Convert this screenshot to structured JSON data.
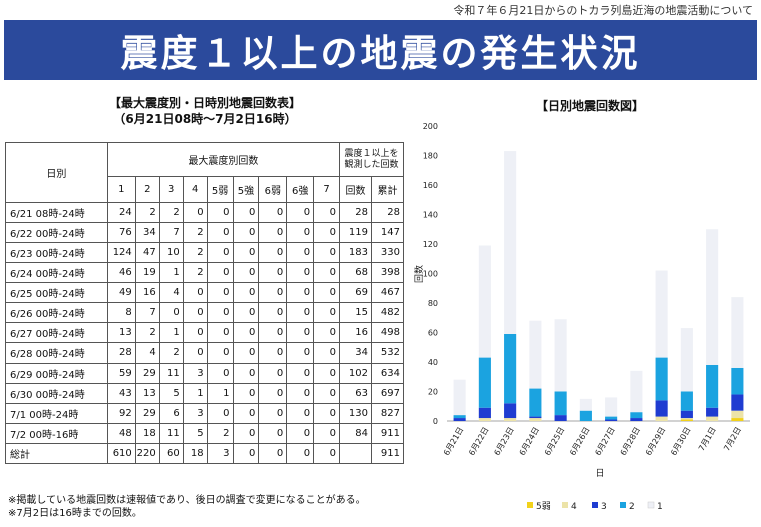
{
  "header_note": "令和７年６月21日からのトカラ列島近海の地震活動について",
  "title": "震度１以上の地震の発生状況",
  "table": {
    "title_line1": "【最大震度別・日時別地震回数表】",
    "title_line2": "（6月21日08時～7月2日16時）",
    "col_date": "日別",
    "col_group": "最大震度別回数",
    "col_cum_group": "震度１以上を観測した回数",
    "intensities": [
      "1",
      "2",
      "3",
      "4",
      "5弱",
      "5強",
      "6弱",
      "6強",
      "7"
    ],
    "col_count": "回数",
    "col_cum": "累計",
    "rows": [
      {
        "date": "6/21 08時-24時",
        "counts": [
          "24",
          "2",
          "2",
          "0",
          "0",
          "0",
          "0",
          "0",
          "0"
        ],
        "total": "28",
        "cum": "28"
      },
      {
        "date": "6/22 00時-24時",
        "counts": [
          "76",
          "34",
          "7",
          "2",
          "0",
          "0",
          "0",
          "0",
          "0"
        ],
        "total": "119",
        "cum": "147"
      },
      {
        "date": "6/23 00時-24時",
        "counts": [
          "124",
          "47",
          "10",
          "2",
          "0",
          "0",
          "0",
          "0",
          "0"
        ],
        "total": "183",
        "cum": "330"
      },
      {
        "date": "6/24 00時-24時",
        "counts": [
          "46",
          "19",
          "1",
          "2",
          "0",
          "0",
          "0",
          "0",
          "0"
        ],
        "total": "68",
        "cum": "398"
      },
      {
        "date": "6/25 00時-24時",
        "counts": [
          "49",
          "16",
          "4",
          "0",
          "0",
          "0",
          "0",
          "0",
          "0"
        ],
        "total": "69",
        "cum": "467"
      },
      {
        "date": "6/26 00時-24時",
        "counts": [
          "8",
          "7",
          "0",
          "0",
          "0",
          "0",
          "0",
          "0",
          "0"
        ],
        "total": "15",
        "cum": "482"
      },
      {
        "date": "6/27 00時-24時",
        "counts": [
          "13",
          "2",
          "1",
          "0",
          "0",
          "0",
          "0",
          "0",
          "0"
        ],
        "total": "16",
        "cum": "498"
      },
      {
        "date": "6/28 00時-24時",
        "counts": [
          "28",
          "4",
          "2",
          "0",
          "0",
          "0",
          "0",
          "0",
          "0"
        ],
        "total": "34",
        "cum": "532"
      },
      {
        "date": "6/29 00時-24時",
        "counts": [
          "59",
          "29",
          "11",
          "3",
          "0",
          "0",
          "0",
          "0",
          "0"
        ],
        "total": "102",
        "cum": "634"
      },
      {
        "date": "6/30 00時-24時",
        "counts": [
          "43",
          "13",
          "5",
          "1",
          "1",
          "0",
          "0",
          "0",
          "0"
        ],
        "total": "63",
        "cum": "697"
      },
      {
        "date": "7/1 00時-24時",
        "counts": [
          "92",
          "29",
          "6",
          "3",
          "0",
          "0",
          "0",
          "0",
          "0"
        ],
        "total": "130",
        "cum": "827"
      },
      {
        "date": "7/2 00時-16時",
        "counts": [
          "48",
          "18",
          "11",
          "5",
          "2",
          "0",
          "0",
          "0",
          "0"
        ],
        "total": "84",
        "cum": "911"
      }
    ],
    "totals": {
      "label": "総計",
      "counts": [
        "610",
        "220",
        "60",
        "18",
        "3",
        "0",
        "0",
        "0",
        "0"
      ],
      "total": "",
      "cum": "911"
    }
  },
  "chart_data": {
    "type": "bar",
    "stacked": true,
    "title": "【日別地震回数図】",
    "xlabel": "日",
    "ylabel": "回数",
    "ylim": [
      0,
      200
    ],
    "yticks": [
      0,
      20,
      40,
      60,
      80,
      100,
      120,
      140,
      160,
      180,
      200
    ],
    "categories": [
      "6月21日",
      "6月22日",
      "6月23日",
      "6月24日",
      "6月25日",
      "6月26日",
      "6月27日",
      "6月28日",
      "6月29日",
      "6月30日",
      "7月1日",
      "7月2日"
    ],
    "series": [
      {
        "name": "5弱",
        "color": "#f2d21a",
        "values": [
          0,
          0,
          0,
          0,
          0,
          0,
          0,
          0,
          0,
          1,
          0,
          2
        ]
      },
      {
        "name": "4",
        "color": "#ece3a8",
        "values": [
          0,
          2,
          2,
          2,
          0,
          0,
          0,
          0,
          3,
          1,
          3,
          5
        ]
      },
      {
        "name": "3",
        "color": "#1f3cd1",
        "values": [
          2,
          7,
          10,
          1,
          4,
          0,
          1,
          2,
          11,
          5,
          6,
          11
        ]
      },
      {
        "name": "2",
        "color": "#1ba3e0",
        "values": [
          2,
          34,
          47,
          19,
          16,
          7,
          2,
          4,
          29,
          13,
          29,
          18
        ]
      },
      {
        "name": "1",
        "color": "#eef0f6",
        "values": [
          24,
          76,
          124,
          46,
          49,
          8,
          13,
          28,
          59,
          43,
          92,
          48
        ]
      }
    ],
    "legend_position": "bottom"
  },
  "footnotes": [
    "※掲載している地震回数は速報値であり、後日の調査で変更になることがある。",
    "※7月2日は16時までの回数。"
  ]
}
